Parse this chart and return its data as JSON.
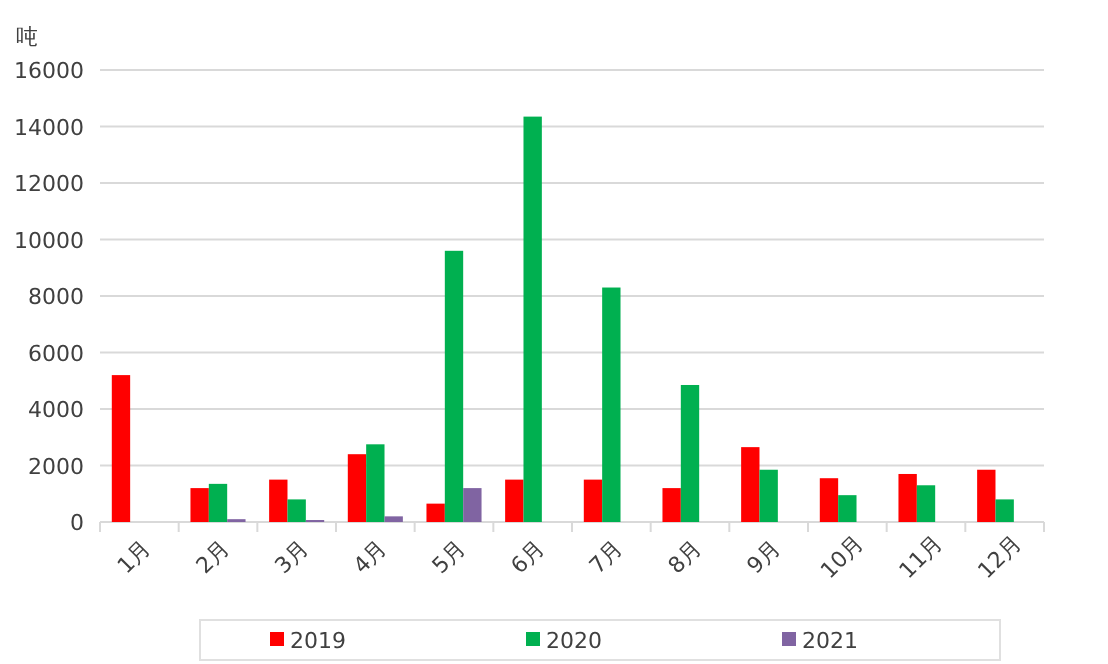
{
  "chart_data": {
    "type": "bar",
    "ylabel": "吨",
    "categories": [
      "1月",
      "2月",
      "3月",
      "4月",
      "5月",
      "6月",
      "7月",
      "8月",
      "9月",
      "10月",
      "11月",
      "12月"
    ],
    "series": [
      {
        "name": "2019",
        "color": "#ff0000",
        "values": [
          5200,
          1200,
          1500,
          2400,
          650,
          1500,
          1500,
          1200,
          2650,
          1550,
          1700,
          1850
        ]
      },
      {
        "name": "2020",
        "color": "#00b050",
        "values": [
          null,
          1350,
          800,
          2750,
          9600,
          14350,
          8300,
          4850,
          1850,
          950,
          1300,
          800
        ]
      },
      {
        "name": "2021",
        "color": "#8064a2",
        "values": [
          null,
          100,
          70,
          200,
          1200,
          null,
          null,
          null,
          null,
          null,
          null,
          null
        ]
      }
    ],
    "ylim": [
      0,
      16000
    ],
    "yticks": [
      0,
      2000,
      4000,
      6000,
      8000,
      10000,
      12000,
      14000,
      16000
    ],
    "grid": "y",
    "legend": "bottom"
  }
}
